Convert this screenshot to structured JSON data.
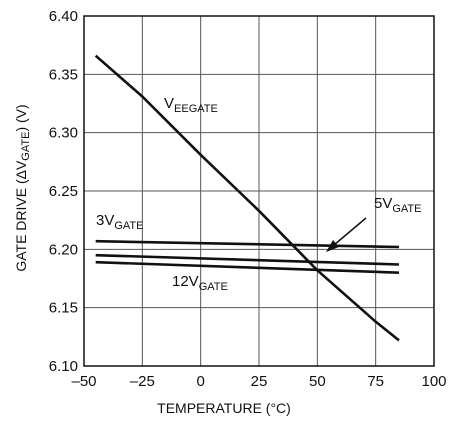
{
  "chart_data": {
    "type": "line",
    "title": "",
    "xlabel": "TEMPERATURE (°C)",
    "ylabel": {
      "main": "GATE DRIVE (ΔV",
      "sub": "GATE",
      "end": ") (V)"
    },
    "xlim": [
      -50,
      100
    ],
    "ylim": [
      6.1,
      6.4
    ],
    "x_ticks": [
      -50,
      -25,
      0,
      25,
      50,
      75,
      100
    ],
    "x_tick_labels": [
      "–50",
      "–25",
      "0",
      "25",
      "50",
      "75",
      "100"
    ],
    "y_ticks": [
      6.1,
      6.15,
      6.2,
      6.25,
      6.3,
      6.35,
      6.4
    ],
    "y_tick_labels": [
      "6.10",
      "6.15",
      "6.20",
      "6.25",
      "6.30",
      "6.35",
      "6.40"
    ],
    "grid": true,
    "line_color": "#111111",
    "grid_color": "#555555",
    "series": [
      {
        "name": {
          "main": "V",
          "sub": "EEGATE"
        },
        "x": [
          -45,
          -25,
          0,
          25,
          50,
          75,
          85
        ],
        "y": [
          6.366,
          6.331,
          6.281,
          6.233,
          6.182,
          6.138,
          6.122
        ]
      },
      {
        "name": {
          "main": "3V",
          "sub": "GATE"
        },
        "x": [
          -45,
          85
        ],
        "y": [
          6.207,
          6.202
        ]
      },
      {
        "name": {
          "main": "5V",
          "sub": "GATE"
        },
        "x": [
          -45,
          85
        ],
        "y": [
          6.195,
          6.187
        ]
      },
      {
        "name": {
          "main": "12V",
          "sub": "GATE"
        },
        "x": [
          -45,
          85
        ],
        "y": [
          6.189,
          6.18
        ]
      }
    ]
  }
}
